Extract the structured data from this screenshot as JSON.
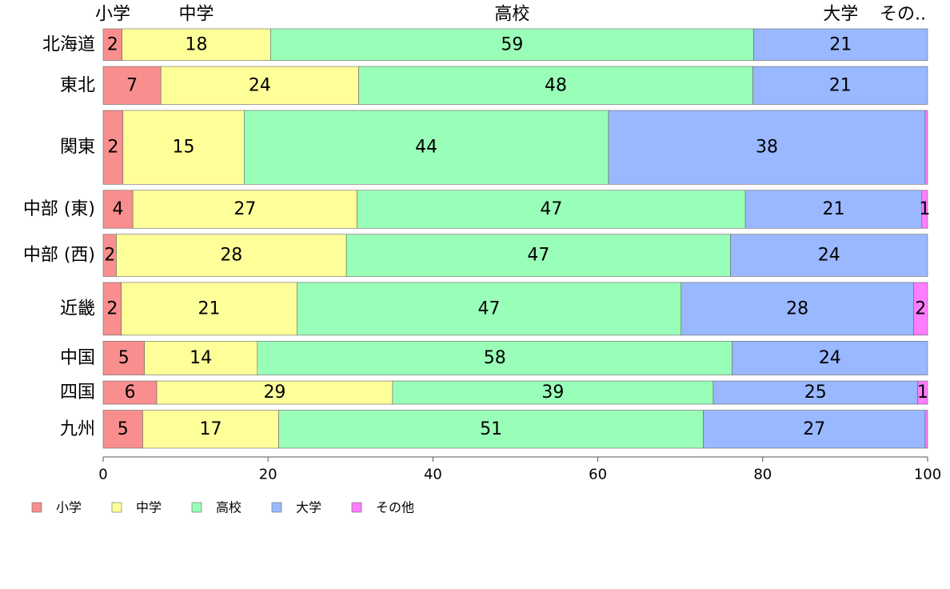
{
  "chart_data": {
    "type": "bar",
    "orientation": "horizontal",
    "stacked": true,
    "title": "",
    "xlabel": "",
    "ylabel": "",
    "xlim": [
      0,
      100
    ],
    "xticks": [
      0,
      20,
      40,
      60,
      80,
      100
    ],
    "grid": false,
    "legend_position": "bottom-left",
    "top_labels": [
      "小学",
      "中学",
      "高校",
      "大学",
      "その.."
    ],
    "categories": [
      "北海道",
      "東北",
      "関東",
      "中部 (東)",
      "中部 (西)",
      "近畿",
      "中国",
      "四国",
      "九州"
    ],
    "bar_widths": [
      0.75,
      0.9,
      1.75,
      0.9,
      1.0,
      1.25,
      0.8,
      0.55,
      0.9
    ],
    "series": [
      {
        "name": "小学",
        "color": "#f98e8e",
        "values": [
          2.3,
          7.0,
          2.4,
          3.6,
          1.6,
          2.2,
          5.0,
          6.5,
          4.8
        ],
        "labels": [
          "2",
          "7",
          "2",
          "4",
          "2",
          "2",
          "5",
          "6",
          "5"
        ]
      },
      {
        "name": "中学",
        "color": "#ffff99",
        "values": [
          18.0,
          24.0,
          14.7,
          27.2,
          27.9,
          21.3,
          13.7,
          28.6,
          16.5
        ],
        "labels": [
          "18",
          "24",
          "15",
          "27",
          "28",
          "21",
          "14",
          "29",
          "17"
        ]
      },
      {
        "name": "高校",
        "color": "#99ffb8",
        "values": [
          58.6,
          47.8,
          44.2,
          47.1,
          46.6,
          46.6,
          57.6,
          38.9,
          51.5
        ],
        "labels": [
          "59",
          "48",
          "44",
          "47",
          "47",
          "47",
          "58",
          "39",
          "51"
        ]
      },
      {
        "name": "大学",
        "color": "#99b8ff",
        "values": [
          21.1,
          21.2,
          38.4,
          21.4,
          23.9,
          28.2,
          23.7,
          24.8,
          26.9
        ],
        "labels": [
          "21",
          "21",
          "38",
          "21",
          "24",
          "28",
          "24",
          "25",
          "27"
        ]
      },
      {
        "name": "その他",
        "color": "#ff7dff",
        "values": [
          0.0,
          0.0,
          0.3,
          0.7,
          0.0,
          1.7,
          0.0,
          1.2,
          0.3
        ],
        "labels": [
          "",
          "",
          "",
          "1",
          "",
          "2",
          "",
          "1",
          ""
        ]
      }
    ]
  }
}
